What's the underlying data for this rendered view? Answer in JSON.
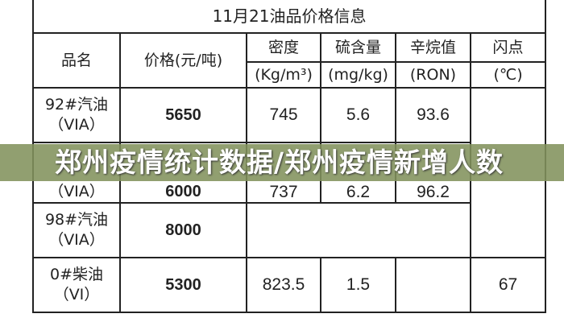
{
  "table": {
    "title": "11月21油品价格信息",
    "headers": {
      "name": "品名",
      "price": "价格(元/吨)",
      "density": "密度",
      "density_unit": "(Kg/m³)",
      "sulfur": "硫含量",
      "sulfur_unit": "(mg/kg)",
      "octane": "辛烷值",
      "octane_unit": "(RON)",
      "flash": "闪点",
      "flash_unit": "(℃)"
    },
    "rows": [
      {
        "name": "92#汽油",
        "grade": "（VIA）",
        "price": "5650",
        "density": "745",
        "sulfur": "5.6",
        "octane": "93.6",
        "flash": ""
      },
      {
        "name": "",
        "grade": "（VIA）",
        "price": "6000",
        "density": "737",
        "sulfur": "6.2",
        "octane": "96.2",
        "flash": ""
      },
      {
        "name": "98#汽油",
        "grade": "（VIA）",
        "price": "8000",
        "density": "",
        "sulfur": "",
        "octane": "",
        "flash": ""
      },
      {
        "name": "0#柴油",
        "grade": "（VI）",
        "price": "5300",
        "density": "823.5",
        "sulfur": "1.5",
        "octane": "",
        "flash": "67"
      }
    ]
  },
  "banner": {
    "text": "郑州疫情统计数据/郑州疫情新增人数",
    "color": "#82925c"
  }
}
